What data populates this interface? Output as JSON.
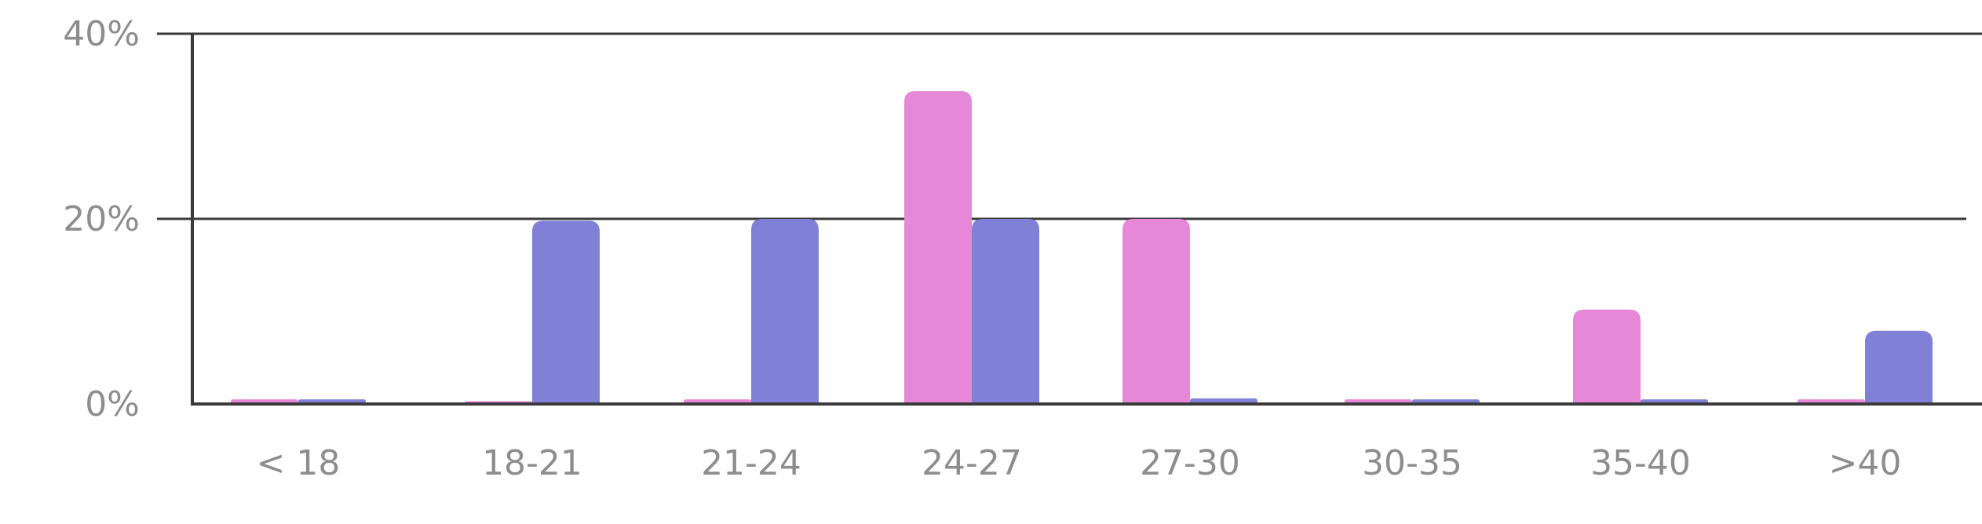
{
  "chart_data": {
    "type": "bar",
    "categories": [
      "< 18",
      "18-21",
      "21-24",
      "24-27",
      "27-30",
      "30-35",
      "35-40",
      ">40"
    ],
    "series": [
      {
        "color": "#e787d7",
        "values": [
          0.5,
          0.3,
          0.5,
          33.8,
          20.0,
          0.5,
          10.2,
          0.5
        ]
      },
      {
        "color": "#8080d6",
        "values": [
          0.5,
          19.8,
          20.0,
          20.0,
          0.6,
          0.5,
          0.5,
          7.9
        ]
      }
    ],
    "ylim": [
      0,
      40
    ],
    "yticks": [
      "0%",
      "20%",
      "40%"
    ],
    "grid": true,
    "title": "",
    "xlabel": "",
    "ylabel": ""
  }
}
